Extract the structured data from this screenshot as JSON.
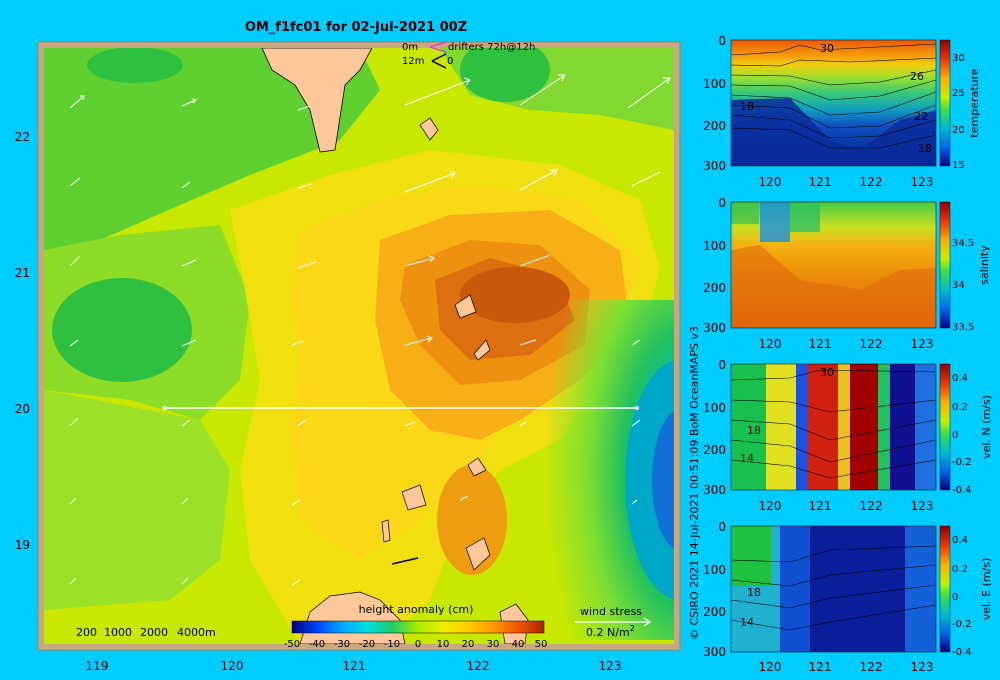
{
  "title": "OM_f1fc01 for 02-Jul-2021 00Z",
  "credit": "© CSIRO 2021   14-Jul-2021 00:51:09 BoM OceanMAPS v3",
  "drifters": {
    "row1_depth": "0m",
    "row1_label": "drifters 72h@12h",
    "row2_depth": "12m",
    "row2_label": "0"
  },
  "bathymetry_legend": [
    "200",
    "1000",
    "2000",
    "4000m"
  ],
  "wind_legend": {
    "title": "wind stress",
    "value": "0.2 N/m",
    "sup": "2"
  },
  "map": {
    "x_ticks": [
      "119",
      "120",
      "121",
      "122",
      "123"
    ],
    "y_ticks": [
      "22",
      "21",
      "20",
      "19"
    ],
    "colorbar_title": "height anomaly (cm)",
    "colorbar_ticks": [
      "-50",
      "-40",
      "-30",
      "-20",
      "-10",
      "0",
      "10",
      "20",
      "30",
      "40",
      "50"
    ]
  },
  "sections": [
    {
      "id": "temperature",
      "ylabel": "temperature",
      "cb_ticks": [
        "30",
        "25",
        "20",
        "15"
      ],
      "contour_labels": [
        "30",
        "26",
        "22",
        "18",
        "18"
      ]
    },
    {
      "id": "salinity",
      "ylabel": "salinity",
      "cb_ticks": [
        "34.5",
        "34",
        "33.5"
      ],
      "contour_labels": []
    },
    {
      "id": "vel-n",
      "ylabel": "vel. N (m/s)",
      "cb_ticks": [
        "0.4",
        "0.2",
        "0",
        "-0.2",
        "-0.4"
      ],
      "contour_labels": [
        "30",
        "18",
        "14"
      ]
    },
    {
      "id": "vel-e",
      "ylabel": "vel. E (m/s)",
      "cb_ticks": [
        "0.4",
        "0.2",
        "0",
        "-0.2",
        "-0.4"
      ],
      "contour_labels": [
        "18",
        "14"
      ]
    }
  ],
  "section_axis": {
    "x_ticks": [
      "120",
      "121",
      "122",
      "123"
    ],
    "y_ticks": [
      "0",
      "100",
      "200",
      "300"
    ]
  }
}
